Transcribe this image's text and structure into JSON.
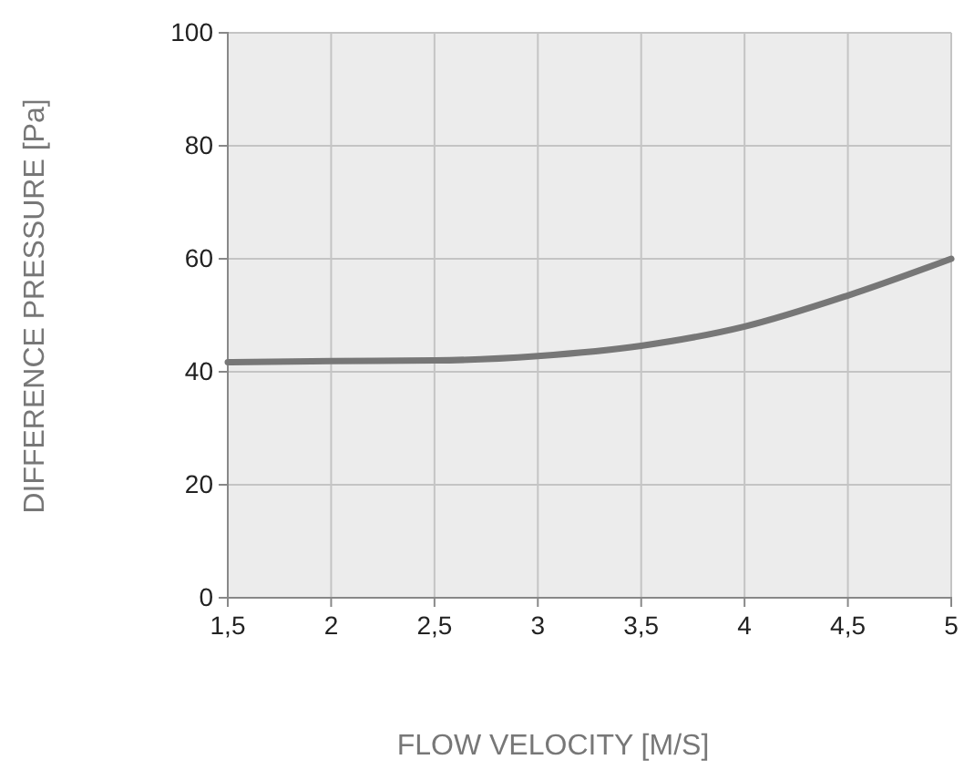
{
  "chart_data": {
    "type": "line",
    "xlabel": "FLOW VELOCITY [M/S]",
    "ylabel": "DIFFERENCE PRESSURE [Pa]",
    "x": [
      1.5,
      2,
      2.5,
      3,
      3.5,
      4,
      4.5,
      5
    ],
    "series": [
      {
        "color": "#777777",
        "values": [
          41.7,
          41.9,
          42,
          42.8,
          44.6,
          48,
          53.5,
          60
        ]
      }
    ],
    "xlim": [
      1.5,
      5
    ],
    "xticks": [
      {
        "value": 1.5,
        "label": "1,5"
      },
      2,
      {
        "value": 2.5,
        "label": "2,5"
      },
      3,
      {
        "value": 3.5,
        "label": "3,5"
      },
      4,
      {
        "value": 4.5,
        "label": "4,5"
      },
      5
    ],
    "ylim": [
      0,
      100
    ],
    "yticks": [
      0,
      20,
      40,
      60,
      80,
      100
    ],
    "grid": true,
    "line_style": "solid",
    "marker": "none"
  }
}
